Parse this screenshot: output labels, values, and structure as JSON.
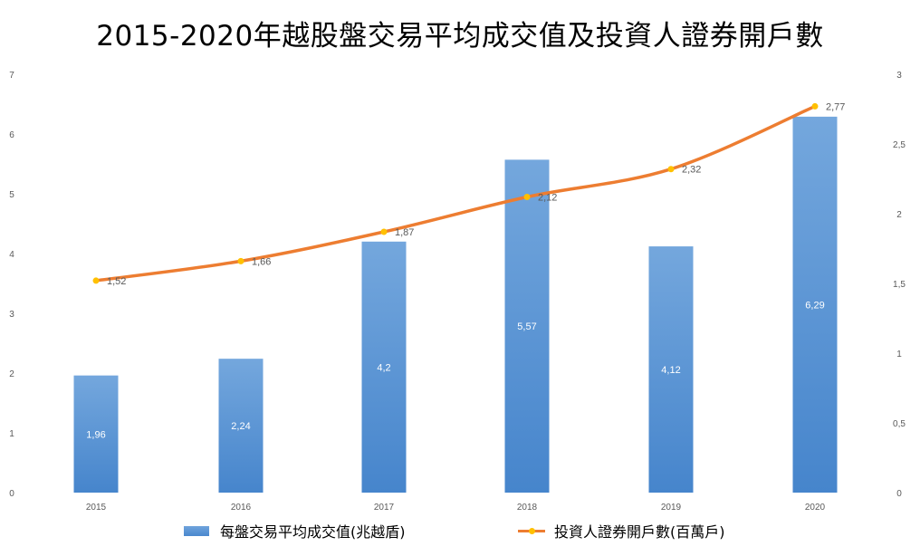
{
  "title": "2015-2020年越股盤交易平均成交值及投資人證券開戶數",
  "chart_data": {
    "type": "bar+line",
    "title": "2015-2020年越股盤交易平均成交值及投資人證券開戶數",
    "categories": [
      "2015",
      "2016",
      "2017",
      "2018",
      "2019",
      "2020"
    ],
    "series": [
      {
        "name": "每盤交易平均成交值(兆越盾)",
        "type": "bar",
        "axis": "left",
        "values": [
          1.96,
          2.24,
          4.2,
          5.57,
          4.12,
          6.29
        ],
        "labels": [
          "1,96",
          "2,24",
          "4,2",
          "5,57",
          "4,12",
          "6,29"
        ],
        "color": "#5b9bd5"
      },
      {
        "name": "投資人證券開戶數(百萬戶)",
        "type": "line",
        "axis": "right",
        "values": [
          1.52,
          1.66,
          1.87,
          2.12,
          2.32,
          2.77
        ],
        "labels": [
          "1,52",
          "1,66",
          "1,87",
          "2,12",
          "2,32",
          "2,77"
        ],
        "color": "#ed7d31",
        "marker_color": "#ffc000"
      }
    ],
    "y_left": {
      "ylim": [
        0,
        7
      ],
      "ticks": [
        "0",
        "1",
        "2",
        "3",
        "4",
        "5",
        "6",
        "7"
      ]
    },
    "y_right": {
      "ylim": [
        0,
        3
      ],
      "ticks": [
        "0",
        "0,5",
        "1",
        "1,5",
        "2",
        "2,5",
        "3"
      ]
    },
    "legend_position": "bottom",
    "grid": false
  }
}
